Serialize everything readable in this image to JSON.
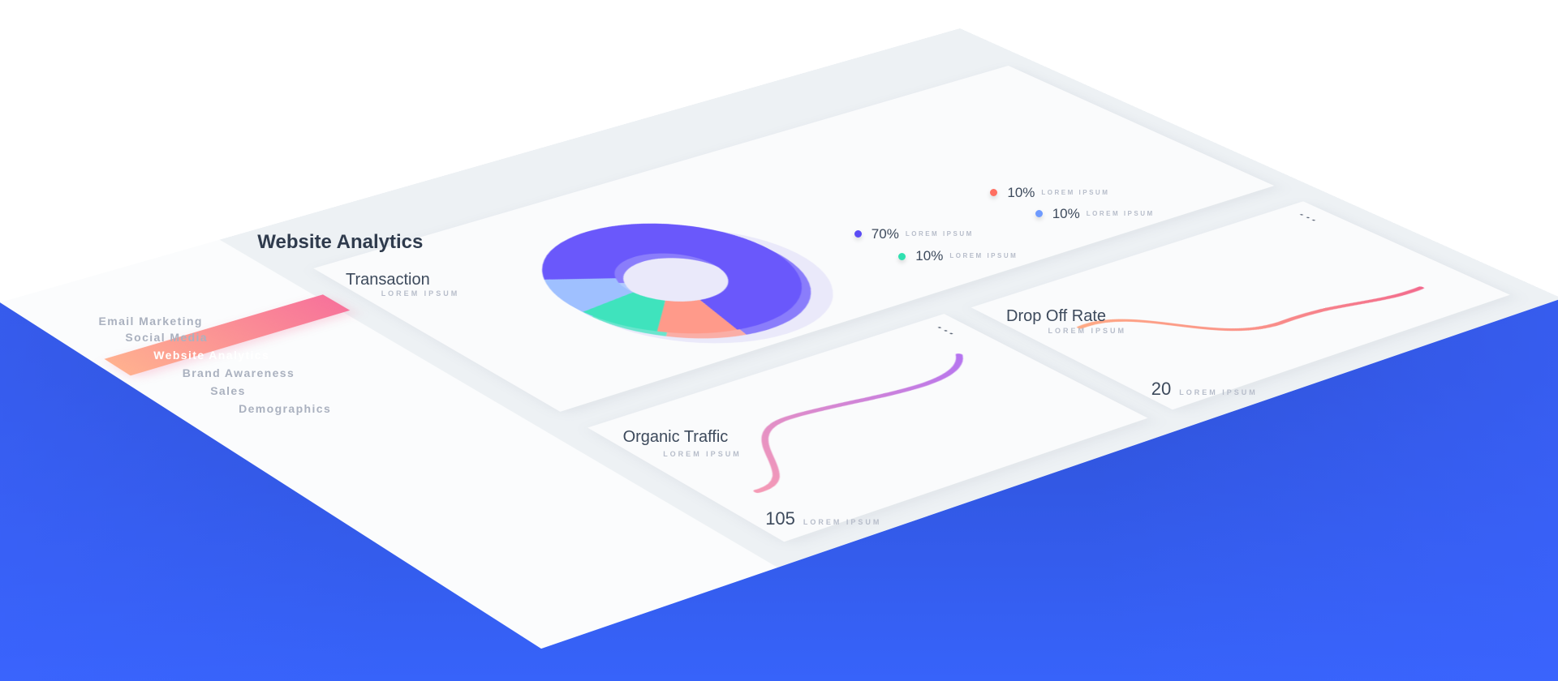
{
  "page_title": "Website Analytics",
  "sidebar": {
    "items": [
      {
        "label": "Email Marketing",
        "active": false
      },
      {
        "label": "Social Media",
        "active": false
      },
      {
        "label": "Website Analytics",
        "active": true
      },
      {
        "label": "Brand Awareness",
        "active": false
      },
      {
        "label": "Sales",
        "active": false
      },
      {
        "label": "Demographics",
        "active": false
      }
    ],
    "active_gradient": [
      "#ffb08f",
      "#f7739a"
    ]
  },
  "transaction": {
    "title": "Transaction",
    "subtitle": "LOREM IPSUM",
    "legend": [
      {
        "value": "70%",
        "label": "LOREM IPSUM",
        "color": "#5b4cf5"
      },
      {
        "value": "10%",
        "label": "LOREM IPSUM",
        "color": "#ff6f61"
      },
      {
        "value": "10%",
        "label": "LOREM IPSUM",
        "color": "#2fe0b0"
      },
      {
        "value": "10%",
        "label": "LOREM IPSUM",
        "color": "#6f9bff"
      }
    ]
  },
  "chart_data": {
    "type": "pie",
    "style": "donut",
    "values": [
      70,
      10,
      10,
      10
    ],
    "colors": [
      "#6a58fb",
      "#ff9a8a",
      "#3fe3bd",
      "#9fc0ff"
    ]
  },
  "organic": {
    "title": "Organic Traffic",
    "subtitle": "LOREM IPSUM",
    "value": "105",
    "value_label": "LOREM IPSUM",
    "menu_icon": "kebab-icon",
    "line_colors": [
      "#f59ab5",
      "#b574f0"
    ]
  },
  "dropoff": {
    "title": "Drop Off Rate",
    "subtitle": "LOREM IPSUM",
    "value": "20",
    "value_label": "LOREM IPSUM",
    "menu_icon": "kebab-icon",
    "line_colors": [
      "#ffab85",
      "#f26a8d"
    ]
  },
  "background_color": "#3763fa"
}
